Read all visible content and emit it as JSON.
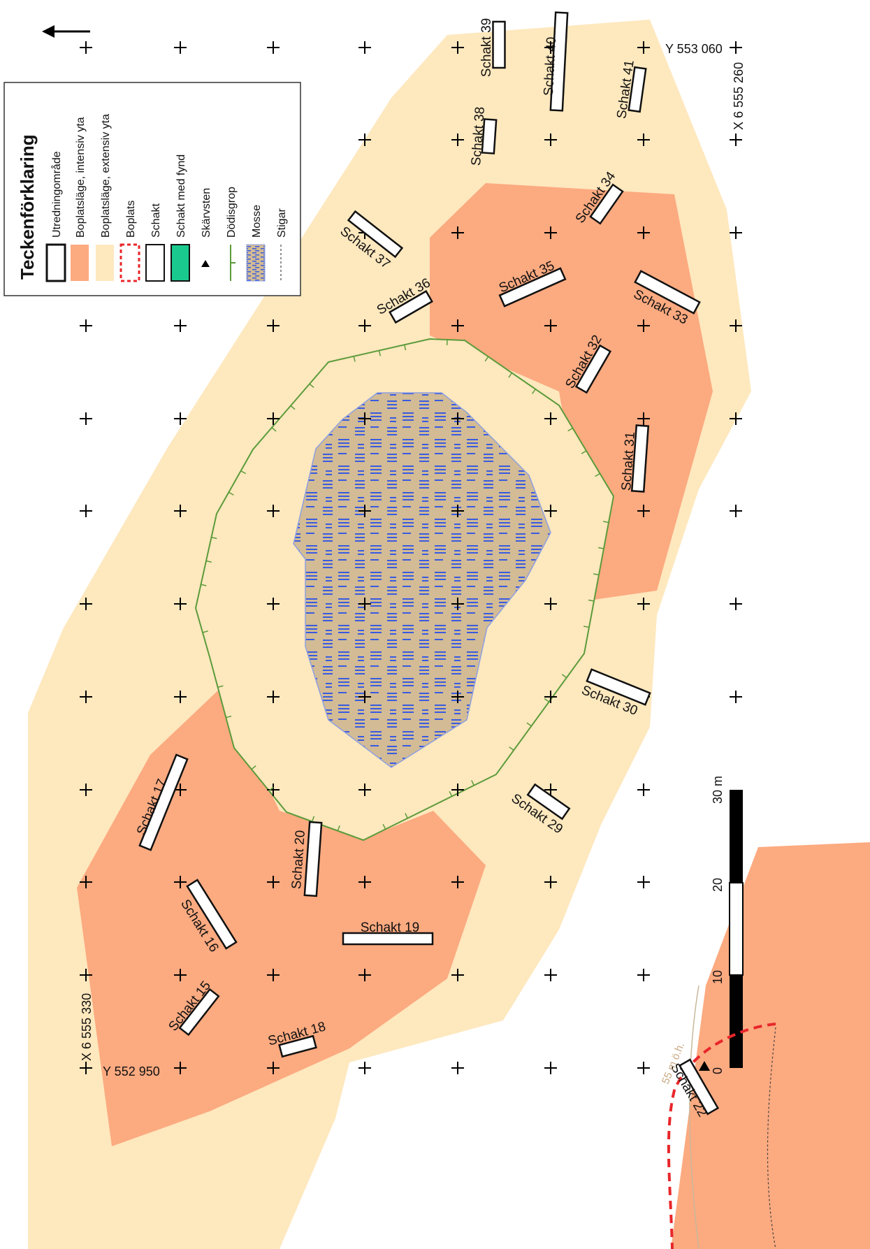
{
  "legend": {
    "title": "Teckenförklaring",
    "items": [
      {
        "label": "Utredningområde",
        "symbol": "study-area"
      },
      {
        "label": "Boplatsläge, intensiv yta",
        "symbol": "intensive-area",
        "color": "#FCAA80"
      },
      {
        "label": "Boplatsläge, extensiv yta",
        "symbol": "extensive-area",
        "color": "#FEE8BE"
      },
      {
        "label": "Boplats",
        "symbol": "settlement",
        "color": "#E8272B"
      },
      {
        "label": "Schakt",
        "symbol": "trench"
      },
      {
        "label": "Schakt med fynd",
        "symbol": "trench-with-find",
        "color": "#19C98E"
      },
      {
        "label": "Skärvsten",
        "symbol": "fire-cracked-stone"
      },
      {
        "label": "Dödisgrop",
        "symbol": "kettle-hole",
        "color": "#5B9B3A"
      },
      {
        "label": "Mosse",
        "symbol": "bog",
        "color": "#D2BB95"
      },
      {
        "label": "Stigar",
        "symbol": "path"
      }
    ]
  },
  "coordinates": {
    "top_y": "Y 553 060",
    "top_x": "X 6 555 260",
    "bottom_x": "X 6 555 330",
    "bottom_y": "Y 552 950"
  },
  "trenches": [
    {
      "name": "Schakt 15"
    },
    {
      "name": "Schakt 16"
    },
    {
      "name": "Schakt 17"
    },
    {
      "name": "Schakt 18"
    },
    {
      "name": "Schakt 19"
    },
    {
      "name": "Schakt 20"
    },
    {
      "name": "Schakt 22"
    },
    {
      "name": "Schakt 29"
    },
    {
      "name": "Schakt 30"
    },
    {
      "name": "Schakt 31"
    },
    {
      "name": "Schakt 32"
    },
    {
      "name": "Schakt 33"
    },
    {
      "name": "Schakt 34"
    },
    {
      "name": "Schakt 35"
    },
    {
      "name": "Schakt 36"
    },
    {
      "name": "Schakt 37"
    },
    {
      "name": "Schakt 38"
    },
    {
      "name": "Schakt 39"
    },
    {
      "name": "Schakt 40"
    },
    {
      "name": "Schakt 41"
    }
  ],
  "scale_bar": {
    "ticks": [
      "0",
      "10",
      "20",
      "30 m"
    ]
  },
  "contour_label": "55 m ö.h.",
  "colors": {
    "extensive": "#FEE8BE",
    "intensive": "#FCAA80",
    "bog": "#D2BB95",
    "bog_hatch": "#3A5BE0",
    "kettle": "#5B9B3A"
  }
}
